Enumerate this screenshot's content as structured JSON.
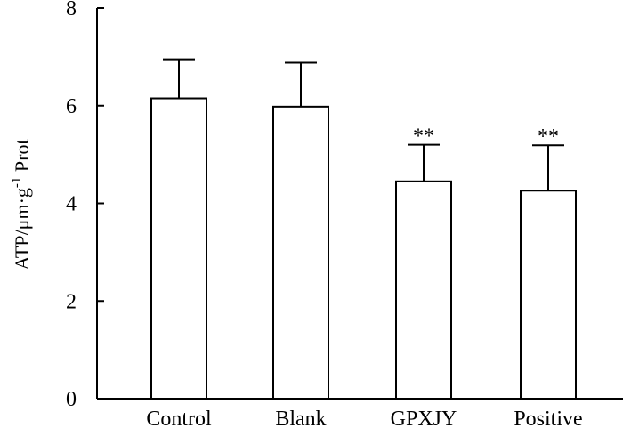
{
  "chart_data": {
    "type": "bar",
    "categories": [
      "Control",
      "Blank",
      "GPXJY",
      "Positive"
    ],
    "values": [
      6.15,
      5.98,
      4.45,
      4.26
    ],
    "errors": [
      0.8,
      0.9,
      0.75,
      0.93
    ],
    "annotations": [
      "",
      "",
      "**",
      "**"
    ],
    "ylabel_main": "ATP/μm·g",
    "ylabel_sup": "-1",
    "ylabel_tail": " Prot",
    "ylim": [
      0,
      8
    ],
    "yticks": [
      0,
      2,
      4,
      6,
      8
    ],
    "grid": false,
    "colors": {
      "bar_fill": "#ffffff",
      "stroke": "#000000"
    }
  }
}
